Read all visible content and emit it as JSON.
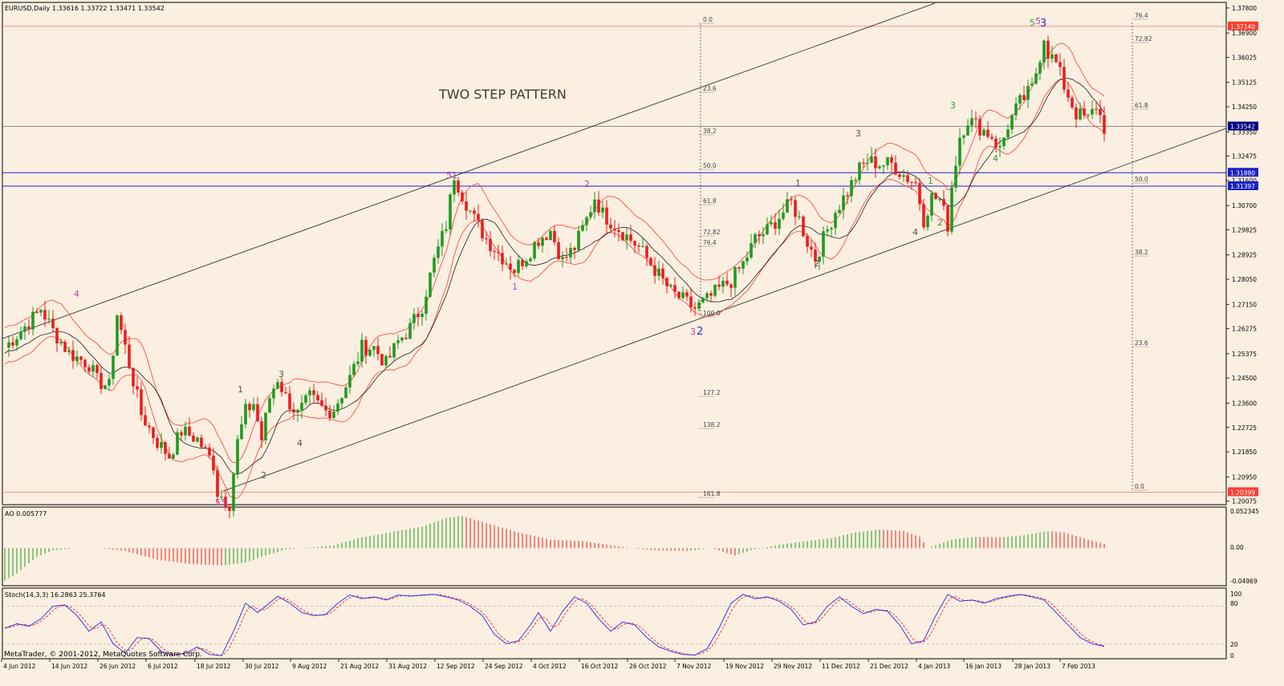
{
  "main": {
    "symbol_line": "EURUSD,Daily  1.33616 1.33722 1.33471 1.33542",
    "pattern_title": "TWO STEP PATTERN",
    "price_ticks": [
      "1.37800",
      "1.36900",
      "1.36025",
      "1.35125",
      "1.34250",
      "1.33350",
      "1.32475",
      "1.31600",
      "1.30700",
      "1.29825",
      "1.28925",
      "1.28050",
      "1.27150",
      "1.26275",
      "1.25375",
      "1.24500",
      "1.23600",
      "1.22725",
      "1.21850",
      "1.20950",
      "1.20075"
    ],
    "price_labels": [
      {
        "text": "1.37140",
        "value": 1.3714,
        "color": "#ff3b30"
      },
      {
        "text": "1.33542",
        "value": 1.33542,
        "color": "#000080"
      },
      {
        "text": "1.31880",
        "value": 1.3188,
        "color": "#1a20c8"
      },
      {
        "text": "1.31397",
        "value": 1.31397,
        "color": "#1a20c8"
      },
      {
        "text": "1.20399",
        "value": 1.20399,
        "color": "#ff3b30"
      }
    ],
    "fib_center": [
      "0.0",
      "23.6",
      "38.2",
      "50.0",
      "61.8",
      "72.82",
      "76.4",
      "100.0",
      "127.2",
      "138.2",
      "161.8"
    ],
    "fib_right": [
      "76.4",
      "72.82",
      "61.8",
      "50.0",
      "38.2",
      "23.6",
      "0.0"
    ],
    "wave_labels": [
      "4",
      "1",
      "3",
      "2",
      "4",
      "5",
      "5",
      "5",
      "1",
      "2",
      "1",
      "3",
      "2",
      "1",
      "3",
      "2",
      "4",
      "1",
      "2",
      "3",
      "4",
      "5",
      "3"
    ]
  },
  "ao": {
    "label": "AO 0.005777",
    "ticks": [
      "0.052345",
      "0.00",
      "-0.04969"
    ]
  },
  "stoch": {
    "label": "Stoch(14,3,3) 16.2863 25.3764",
    "ticks": [
      "100",
      "80",
      "20",
      "0"
    ],
    "copyright": "MetaTrader, © 2001-2012, MetaQuotes Software Corp."
  },
  "dates": [
    "4 Jun 2012",
    "14 Jun 2012",
    "26 Jun 2012",
    "6 Jul 2012",
    "18 Jul 2012",
    "30 Jul 2012",
    "9 Aug 2012",
    "21 Aug 2012",
    "31 Aug 2012",
    "12 Sep 2012",
    "24 Sep 2012",
    "4 Oct 2012",
    "16 Oct 2012",
    "26 Oct 2012",
    "7 Nov 2012",
    "19 Nov 2012",
    "29 Nov 2012",
    "11 Dec 2012",
    "21 Dec 2012",
    "4 Jan 2013",
    "16 Jan 2013",
    "28 Jan 2013",
    "7 Feb 2013"
  ],
  "colors": {
    "background": "#fbefe1",
    "bull": "#1f9a1f",
    "bear": "#ee1c1c",
    "envelope": "#ff3b30",
    "ma": "#000000",
    "stoch_main": "#2626e6",
    "stoch_signal": "#ff2020",
    "wave_purple": "#c040c0",
    "wave_green": "#30a030",
    "wave_blue": "#2d2dd0"
  },
  "chart_data": {
    "type": "candlestick",
    "keypoints": [
      [
        0,
        1.256
      ],
      [
        4,
        1.262
      ],
      [
        8,
        1.268
      ],
      [
        9,
        1.27
      ],
      [
        12,
        1.262
      ],
      [
        16,
        1.254
      ],
      [
        21,
        1.25
      ],
      [
        23,
        1.244
      ],
      [
        26,
        1.242
      ],
      [
        28,
        1.268
      ],
      [
        34,
        1.232
      ],
      [
        38,
        1.222
      ],
      [
        41,
        1.217
      ],
      [
        44,
        1.226
      ],
      [
        48,
        1.223
      ],
      [
        52,
        1.214
      ],
      [
        53,
        1.204
      ],
      [
        56,
        1.2
      ],
      [
        58,
        1.222
      ],
      [
        60,
        1.233
      ],
      [
        62,
        1.236
      ],
      [
        64,
        1.223
      ],
      [
        66,
        1.238
      ],
      [
        68,
        1.245
      ],
      [
        70,
        1.238
      ],
      [
        73,
        1.232
      ],
      [
        76,
        1.238
      ],
      [
        80,
        1.233
      ],
      [
        82,
        1.234
      ],
      [
        86,
        1.245
      ],
      [
        89,
        1.256
      ],
      [
        92,
        1.256
      ],
      [
        95,
        1.25
      ],
      [
        98,
        1.258
      ],
      [
        101,
        1.263
      ],
      [
        104,
        1.271
      ],
      [
        107,
        1.287
      ],
      [
        110,
        1.3
      ],
      [
        112,
        1.318
      ],
      [
        114,
        1.311
      ],
      [
        117,
        1.302
      ],
      [
        120,
        1.295
      ],
      [
        123,
        1.29
      ],
      [
        127,
        1.284
      ],
      [
        130,
        1.289
      ],
      [
        133,
        1.295
      ],
      [
        136,
        1.298
      ],
      [
        139,
        1.287
      ],
      [
        142,
        1.292
      ],
      [
        145,
        1.302
      ],
      [
        147,
        1.31
      ],
      [
        149,
        1.304
      ],
      [
        152,
        1.3
      ],
      [
        155,
        1.296
      ],
      [
        158,
        1.292
      ],
      [
        161,
        1.286
      ],
      [
        164,
        1.28
      ],
      [
        166,
        1.276
      ],
      [
        169,
        1.273
      ],
      [
        172,
        1.27
      ],
      [
        175,
        1.273
      ],
      [
        178,
        1.277
      ],
      [
        181,
        1.28
      ],
      [
        184,
        1.286
      ],
      [
        187,
        1.295
      ],
      [
        190,
        1.298
      ],
      [
        193,
        1.303
      ],
      [
        196,
        1.308
      ],
      [
        198,
        1.302
      ],
      [
        200,
        1.294
      ],
      [
        202,
        1.288
      ],
      [
        204,
        1.295
      ],
      [
        207,
        1.305
      ],
      [
        210,
        1.312
      ],
      [
        213,
        1.32
      ],
      [
        215,
        1.323
      ],
      [
        218,
        1.322
      ],
      [
        221,
        1.322
      ],
      [
        224,
        1.318
      ],
      [
        227,
        1.315
      ],
      [
        229,
        1.302
      ],
      [
        231,
        1.31
      ],
      [
        233,
        1.309
      ],
      [
        235,
        1.3
      ],
      [
        236,
        1.314
      ],
      [
        238,
        1.332
      ],
      [
        240,
        1.338
      ],
      [
        243,
        1.335
      ],
      [
        246,
        1.332
      ],
      [
        248,
        1.327
      ],
      [
        250,
        1.336
      ],
      [
        253,
        1.344
      ],
      [
        256,
        1.349
      ],
      [
        258,
        1.361
      ],
      [
        259,
        1.368
      ],
      [
        260,
        1.362
      ],
      [
        262,
        1.358
      ],
      [
        264,
        1.35
      ],
      [
        267,
        1.34
      ],
      [
        270,
        1.338
      ],
      [
        272,
        1.343
      ],
      [
        274,
        1.335
      ]
    ],
    "price_range": [
      1.1995,
      1.38
    ],
    "ao_keypoints": [
      [
        0,
        -0.045
      ],
      [
        3,
        -0.035
      ],
      [
        8,
        -0.012
      ],
      [
        12,
        -0.003
      ],
      [
        18,
        0.0
      ],
      [
        24,
        0.0
      ],
      [
        30,
        -0.004
      ],
      [
        38,
        -0.016
      ],
      [
        46,
        -0.022
      ],
      [
        54,
        -0.024
      ],
      [
        60,
        -0.02
      ],
      [
        64,
        -0.012
      ],
      [
        70,
        -0.002
      ],
      [
        76,
        0.001
      ],
      [
        82,
        0.004
      ],
      [
        88,
        0.014
      ],
      [
        96,
        0.022
      ],
      [
        104,
        0.03
      ],
      [
        110,
        0.042
      ],
      [
        114,
        0.045
      ],
      [
        120,
        0.035
      ],
      [
        128,
        0.022
      ],
      [
        136,
        0.012
      ],
      [
        144,
        0.01
      ],
      [
        150,
        0.005
      ],
      [
        156,
        0.0
      ],
      [
        162,
        -0.003
      ],
      [
        170,
        -0.004
      ],
      [
        176,
        0.0
      ],
      [
        182,
        -0.01
      ],
      [
        186,
        -0.003
      ],
      [
        192,
        0.004
      ],
      [
        200,
        0.01
      ],
      [
        206,
        0.014
      ],
      [
        212,
        0.022
      ],
      [
        218,
        0.026
      ],
      [
        224,
        0.024
      ],
      [
        228,
        0.016
      ],
      [
        230,
        0.0
      ],
      [
        232,
        0.004
      ],
      [
        236,
        0.012
      ],
      [
        242,
        0.016
      ],
      [
        248,
        0.015
      ],
      [
        254,
        0.018
      ],
      [
        260,
        0.024
      ],
      [
        264,
        0.022
      ],
      [
        270,
        0.012
      ],
      [
        274,
        0.006
      ]
    ],
    "ao_range": [
      -0.05,
      0.055
    ],
    "stoch_keypoints": [
      [
        0,
        45
      ],
      [
        3,
        52
      ],
      [
        6,
        48
      ],
      [
        9,
        60
      ],
      [
        12,
        80
      ],
      [
        15,
        82
      ],
      [
        18,
        65
      ],
      [
        21,
        40
      ],
      [
        24,
        55
      ],
      [
        27,
        20
      ],
      [
        30,
        5
      ],
      [
        33,
        30
      ],
      [
        36,
        28
      ],
      [
        39,
        8
      ],
      [
        42,
        2
      ],
      [
        45,
        5
      ],
      [
        48,
        15
      ],
      [
        51,
        3
      ],
      [
        54,
        1
      ],
      [
        57,
        40
      ],
      [
        60,
        85
      ],
      [
        63,
        70
      ],
      [
        65,
        80
      ],
      [
        68,
        96
      ],
      [
        71,
        85
      ],
      [
        74,
        70
      ],
      [
        77,
        65
      ],
      [
        80,
        67
      ],
      [
        83,
        85
      ],
      [
        86,
        98
      ],
      [
        89,
        92
      ],
      [
        92,
        95
      ],
      [
        95,
        90
      ],
      [
        98,
        98
      ],
      [
        101,
        96
      ],
      [
        104,
        98
      ],
      [
        107,
        99
      ],
      [
        110,
        95
      ],
      [
        113,
        90
      ],
      [
        116,
        80
      ],
      [
        119,
        65
      ],
      [
        122,
        35
      ],
      [
        125,
        20
      ],
      [
        128,
        25
      ],
      [
        131,
        50
      ],
      [
        133,
        70
      ],
      [
        136,
        40
      ],
      [
        139,
        72
      ],
      [
        142,
        95
      ],
      [
        145,
        85
      ],
      [
        148,
        60
      ],
      [
        151,
        40
      ],
      [
        154,
        55
      ],
      [
        157,
        50
      ],
      [
        160,
        30
      ],
      [
        163,
        15
      ],
      [
        166,
        8
      ],
      [
        169,
        3
      ],
      [
        172,
        2
      ],
      [
        175,
        12
      ],
      [
        178,
        45
      ],
      [
        181,
        85
      ],
      [
        184,
        99
      ],
      [
        187,
        92
      ],
      [
        190,
        95
      ],
      [
        193,
        88
      ],
      [
        196,
        75
      ],
      [
        199,
        50
      ],
      [
        202,
        55
      ],
      [
        205,
        80
      ],
      [
        208,
        95
      ],
      [
        211,
        80
      ],
      [
        214,
        68
      ],
      [
        217,
        75
      ],
      [
        220,
        72
      ],
      [
        223,
        50
      ],
      [
        226,
        20
      ],
      [
        229,
        25
      ],
      [
        232,
        65
      ],
      [
        235,
        99
      ],
      [
        238,
        88
      ],
      [
        241,
        90
      ],
      [
        244,
        85
      ],
      [
        247,
        92
      ],
      [
        250,
        96
      ],
      [
        253,
        99
      ],
      [
        256,
        95
      ],
      [
        259,
        90
      ],
      [
        262,
        70
      ],
      [
        265,
        50
      ],
      [
        268,
        30
      ],
      [
        271,
        20
      ],
      [
        274,
        16
      ]
    ]
  }
}
